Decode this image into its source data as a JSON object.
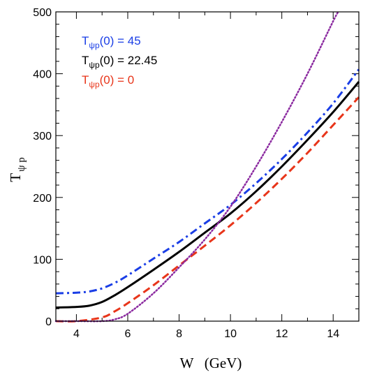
{
  "chart_data": {
    "type": "line",
    "title": "",
    "xlabel": "W   (GeV)",
    "ylabel": {
      "main": "T",
      "sub": "ψ p"
    },
    "xlim": [
      3.2,
      15
    ],
    "ylim": [
      0,
      500
    ],
    "x_ticks": [
      4,
      6,
      8,
      10,
      12,
      14
    ],
    "y_ticks": [
      0,
      100,
      200,
      300,
      400,
      500
    ],
    "grid": false,
    "legend_placement": "top-left",
    "series": [
      {
        "name": {
          "base": "T",
          "sub": "ψp",
          "rest": "(0) = 45"
        },
        "color": "#1a3ee6",
        "dash": "dashdot",
        "x": [
          3.2,
          4.0,
          4.5,
          5.0,
          5.5,
          6.0,
          7.0,
          8.0,
          9.0,
          10.0,
          11.0,
          12.0,
          13.0,
          14.0,
          15.0
        ],
        "y": [
          45,
          46,
          48,
          53,
          62,
          74,
          101,
          128,
          158,
          188,
          223,
          262,
          305,
          352,
          407
        ]
      },
      {
        "name": {
          "base": "T",
          "sub": "ψp",
          "rest": "(0) = 22.45"
        },
        "color": "#000000",
        "dash": "solid",
        "x": [
          3.2,
          4.0,
          4.5,
          5.0,
          5.5,
          6.0,
          7.0,
          8.0,
          9.0,
          10.0,
          11.0,
          12.0,
          13.0,
          14.0,
          15.0
        ],
        "y": [
          22,
          23,
          25,
          31,
          42,
          55,
          83,
          112,
          143,
          174,
          210,
          250,
          293,
          338,
          387
        ]
      },
      {
        "name": {
          "base": "T",
          "sub": "ψp",
          "rest": "(0) = 0"
        },
        "color": "#e8351a",
        "dash": "dashed",
        "x": [
          3.2,
          4.0,
          5.0,
          5.5,
          6.0,
          7.0,
          8.0,
          9.0,
          10.0,
          11.0,
          12.0,
          13.0,
          14.0,
          15.0
        ],
        "y": [
          0,
          0,
          6,
          16,
          29,
          58,
          90,
          122,
          155,
          191,
          230,
          272,
          317,
          362
        ]
      },
      {
        "name": "",
        "color": "#8b2aa0",
        "dash": "dotted",
        "x": [
          3.2,
          4.0,
          5.0,
          5.5,
          6.0,
          7.0,
          8.0,
          9.0,
          10.0,
          11.0,
          12.0,
          13.0,
          14.0,
          14.2
        ],
        "y": [
          0,
          0,
          0,
          3,
          12,
          45,
          87,
          132,
          185,
          250,
          322,
          400,
          485,
          500
        ]
      }
    ]
  }
}
